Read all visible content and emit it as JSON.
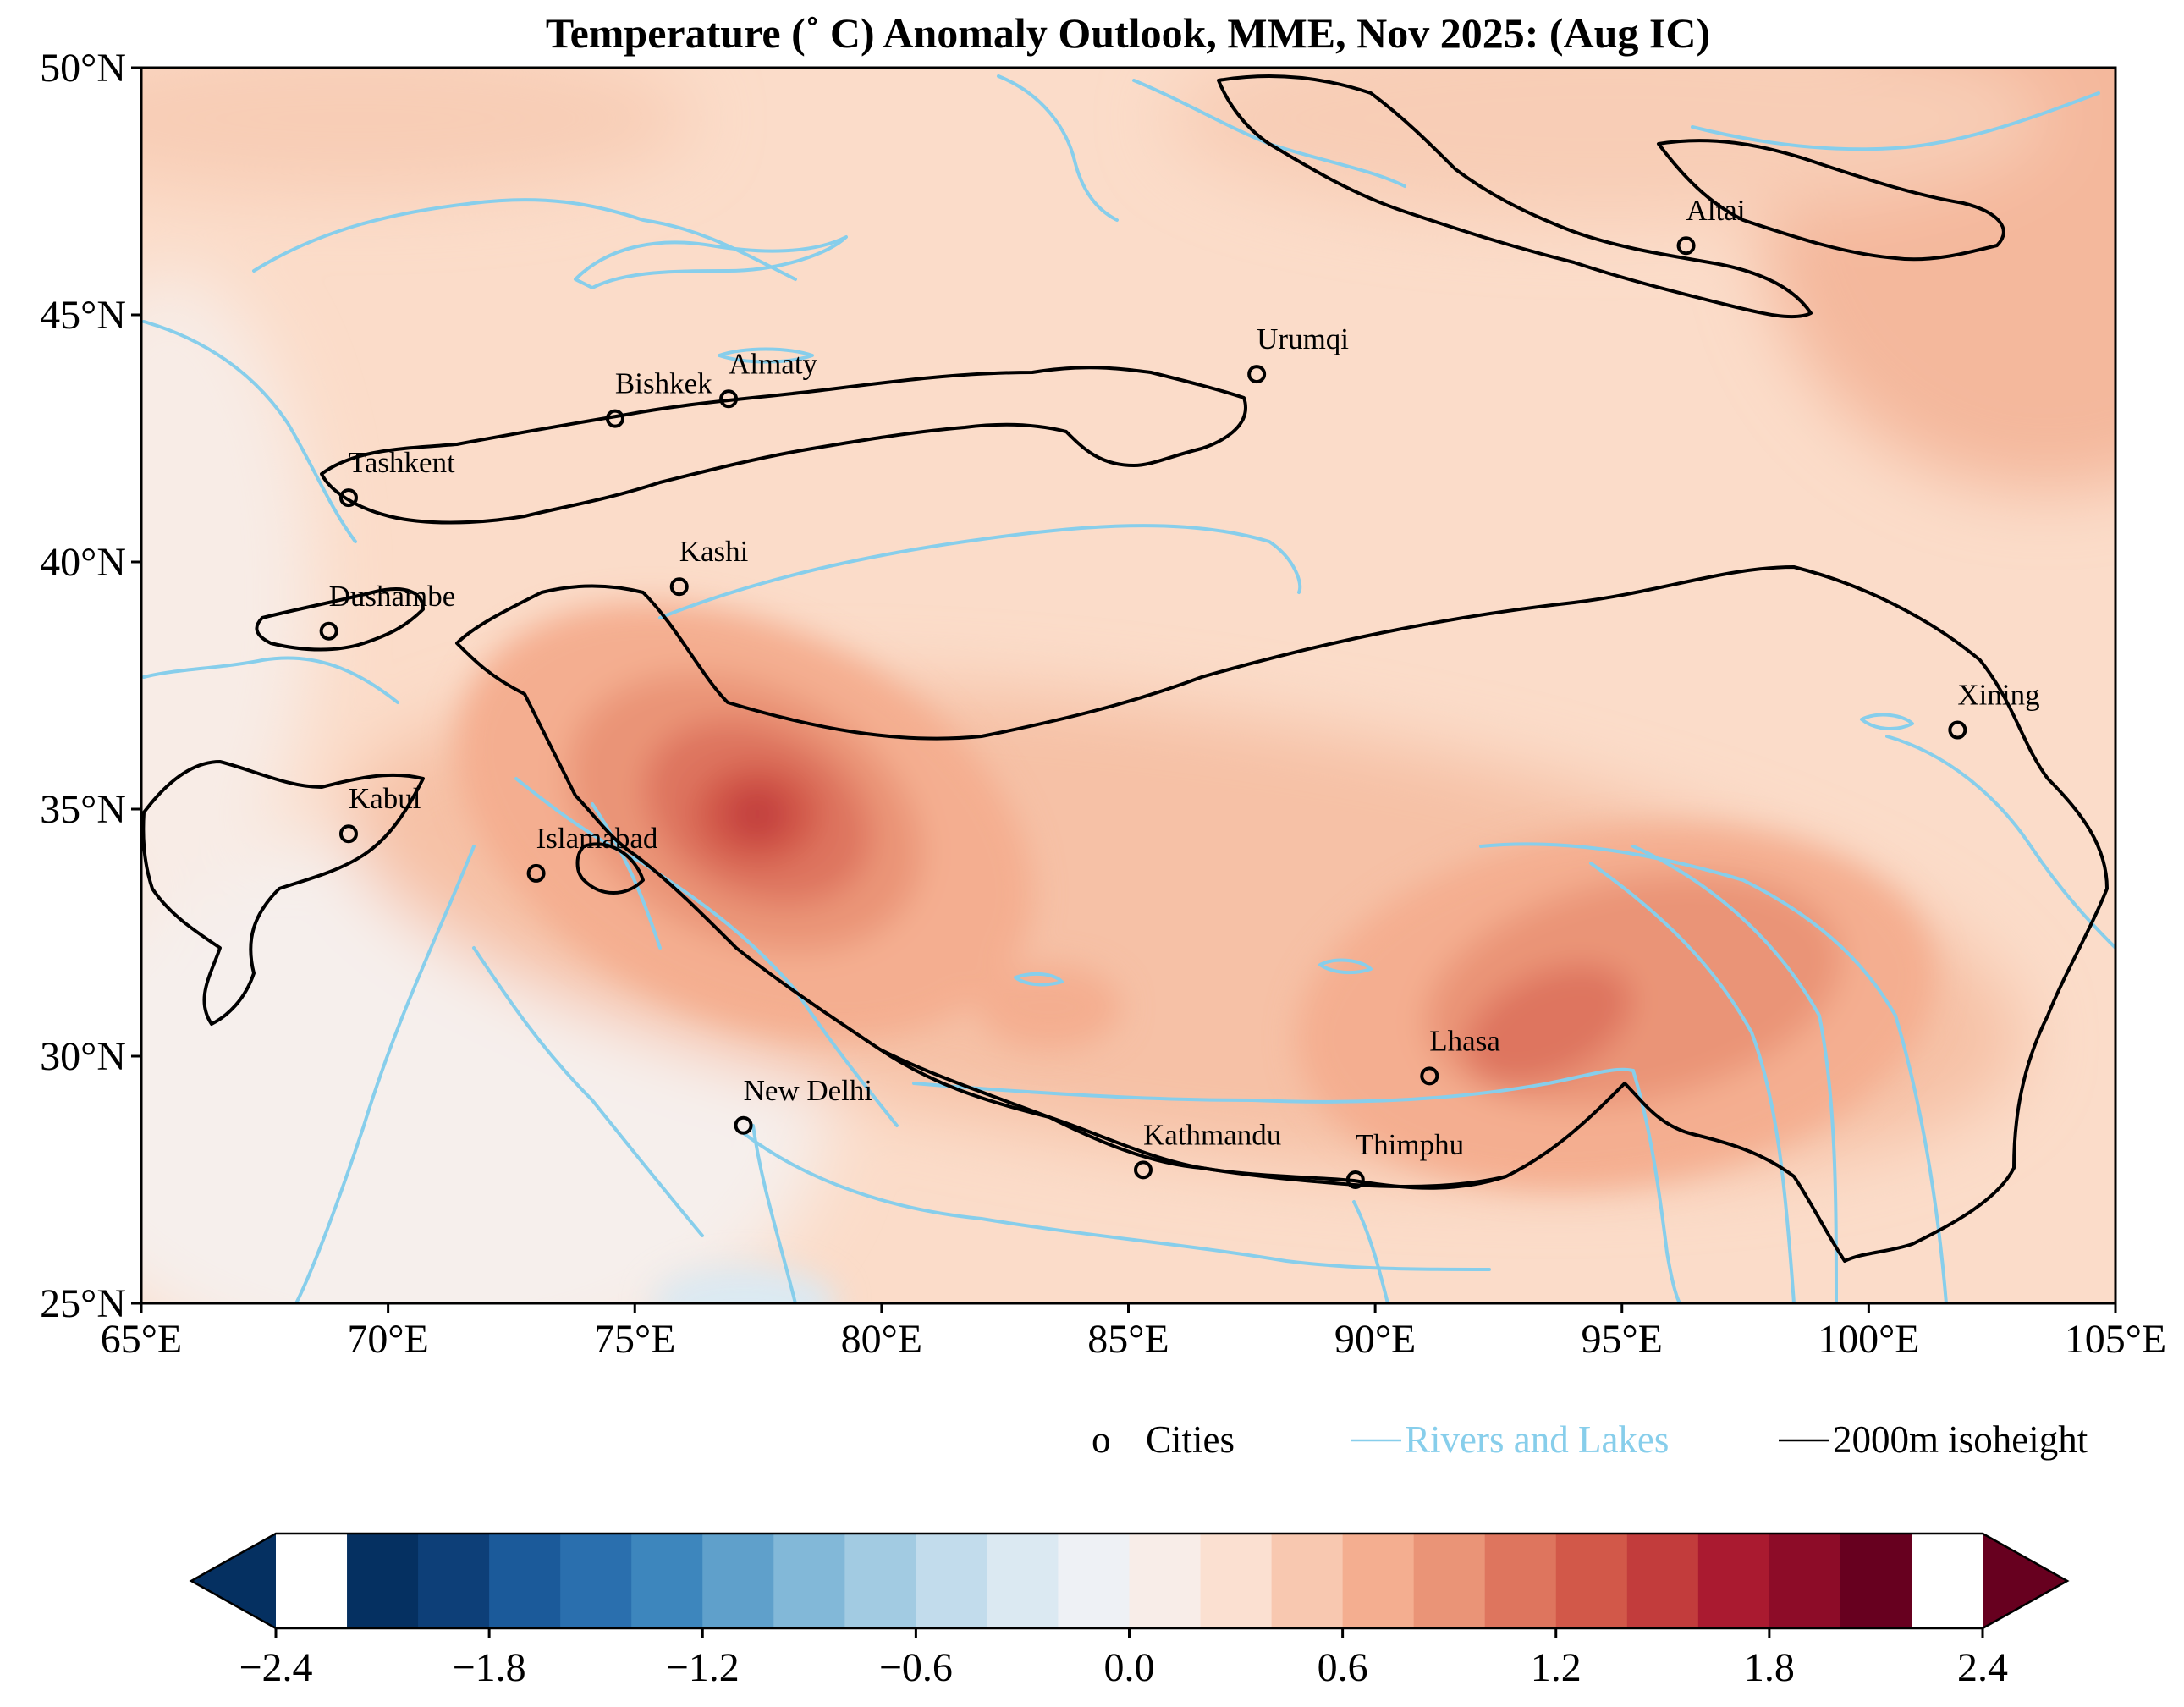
{
  "title": "Temperature (˚ C) Anomaly Outlook, MME, Nov  2025:  (Aug IC)",
  "map": {
    "lon_range": [
      65,
      105
    ],
    "lat_range": [
      25,
      50
    ],
    "lon_ticks": [
      "65°E",
      "70°E",
      "75°E",
      "80°E",
      "85°E",
      "90°E",
      "95°E",
      "100°E",
      "105°E"
    ],
    "lat_ticks": [
      "50°N",
      "45°N",
      "40°N",
      "35°N",
      "30°N",
      "25°N"
    ],
    "background_anomaly_color": "#fbdcc9",
    "anomaly_highs": [
      {
        "lon": 77.5,
        "lat": 34.9,
        "anomaly": 1.5
      },
      {
        "lon": 93.3,
        "lat": 31.0,
        "anomaly": 1.2
      },
      {
        "lon": 84.0,
        "lat": 31.1,
        "anomaly": 0.8
      }
    ],
    "anomaly_lows": [
      {
        "lon": 77.0,
        "lat": 25.3,
        "anomaly": -0.4
      }
    ]
  },
  "cities": [
    {
      "name": "Altai",
      "lon": 96.3,
      "lat": 46.4
    },
    {
      "name": "Urumqi",
      "lon": 87.6,
      "lat": 43.8
    },
    {
      "name": "Almaty",
      "lon": 76.9,
      "lat": 43.3
    },
    {
      "name": "Bishkek",
      "lon": 74.6,
      "lat": 42.9
    },
    {
      "name": "Tashkent",
      "lon": 69.2,
      "lat": 41.3
    },
    {
      "name": "Kashi",
      "lon": 75.9,
      "lat": 39.5
    },
    {
      "name": "Dushambe",
      "lon": 68.8,
      "lat": 38.6
    },
    {
      "name": "Xining",
      "lon": 101.8,
      "lat": 36.6
    },
    {
      "name": "Kabul",
      "lon": 69.2,
      "lat": 34.5
    },
    {
      "name": "Islamabad",
      "lon": 73.0,
      "lat": 33.7
    },
    {
      "name": "Lhasa",
      "lon": 91.1,
      "lat": 29.6
    },
    {
      "name": "New Delhi",
      "lon": 77.2,
      "lat": 28.6
    },
    {
      "name": "Kathmandu",
      "lon": 85.3,
      "lat": 27.7
    },
    {
      "name": "Thimphu",
      "lon": 89.6,
      "lat": 27.5
    }
  ],
  "legend": {
    "cities_marker": "o",
    "cities_label": "Cities",
    "rivers_label": "Rivers and Lakes",
    "isoheight_label": "2000m isoheight",
    "river_color": "#87ceeb",
    "isoheight_color": "#000000"
  },
  "colorbar": {
    "levels": [
      -2.4,
      -2.2,
      -2.0,
      -1.8,
      -1.6,
      -1.4,
      -1.2,
      -1.0,
      -0.8,
      -0.6,
      -0.4,
      -0.2,
      0.0,
      0.2,
      0.4,
      0.6,
      0.8,
      1.0,
      1.2,
      1.4,
      1.6,
      1.8,
      2.0,
      2.2,
      2.4
    ],
    "tick_labels": [
      "−2.4",
      "−1.8",
      "−1.2",
      "−0.6",
      "0.0",
      "0.6",
      "1.2",
      "1.8",
      "2.4"
    ],
    "colors": [
      "#053061",
      "#0d3f78",
      "#1b5a9a",
      "#2a6fae",
      "#3d86bd",
      "#5fa0cb",
      "#82b8d8",
      "#a2cbe2",
      "#c2dcec",
      "#dbe9f2",
      "#eef1f5",
      "#f8ede8",
      "#fbe0d1",
      "#f8c8b0",
      "#f4ae90",
      "#ea9477",
      "#de755e",
      "#d25849",
      "#c23c3c",
      "#aa1a30",
      "#8d0c28",
      "#67001f"
    ],
    "under_color": "#053061",
    "over_color": "#67001f"
  }
}
